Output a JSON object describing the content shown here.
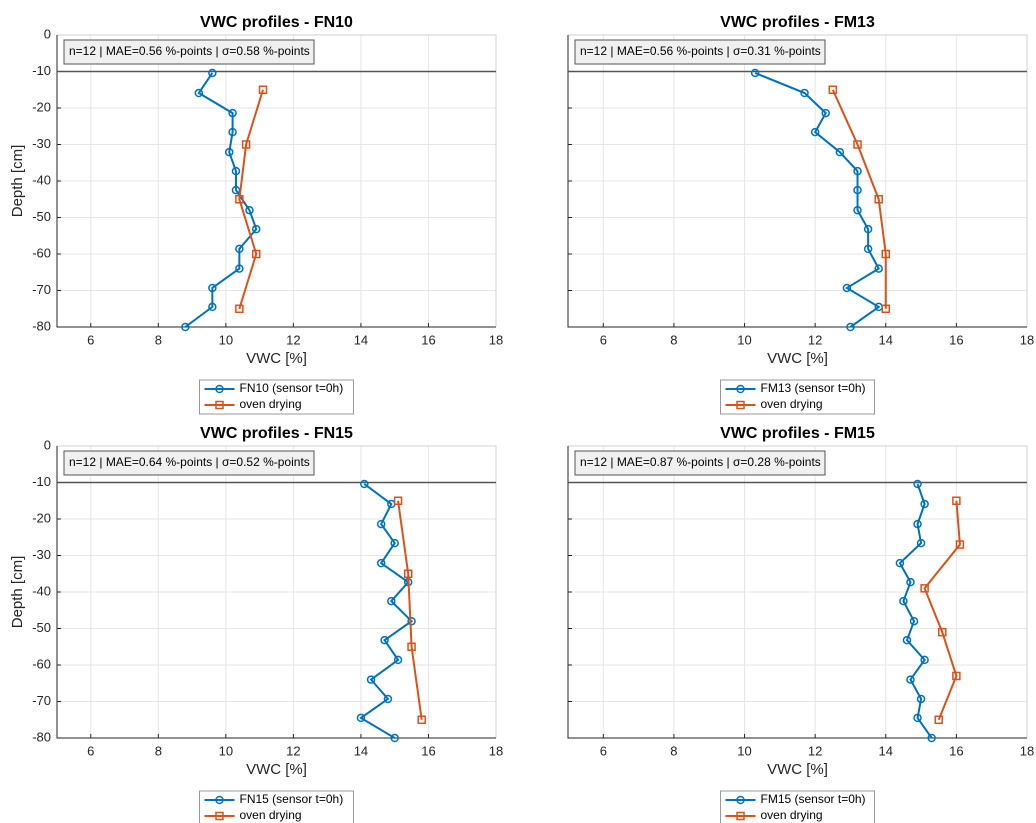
{
  "chart_data": [
    {
      "type": "line",
      "title": "VWC profiles - FN10",
      "annotation": "n=12 | MAE=0.56 %-points | σ=0.58 %-points",
      "xlabel": "VWC [%]",
      "ylabel": "Depth [cm]",
      "xlim": [
        5,
        18
      ],
      "ylim": [
        -80,
        0
      ],
      "xticks": [
        6,
        8,
        10,
        12,
        14,
        16,
        18
      ],
      "yticks": [
        0,
        -10,
        -20,
        -30,
        -40,
        -50,
        -60,
        -70,
        -80
      ],
      "ytick_labels": true,
      "grid": true,
      "hline": -10,
      "series": [
        {
          "name": "FN10 (sensor t=0h)",
          "color": "#0072bd",
          "marker": "o",
          "x": [
            9.6,
            9.2,
            10.2,
            10.2,
            10.1,
            10.3,
            10.3,
            10.7,
            10.9,
            10.4,
            10.4,
            9.6,
            9.6,
            8.8
          ],
          "values": [
            -10.4,
            -15.9,
            -21.4,
            -26.6,
            -32.1,
            -37.3,
            -42.5,
            -48,
            -53.2,
            -58.6,
            -64,
            -69.3,
            -74.5,
            -80
          ]
        },
        {
          "name": "oven drying",
          "color": "#d95319",
          "marker": "s",
          "x": [
            11.1,
            10.6,
            10.4,
            10.9,
            10.4
          ],
          "values": [
            -15,
            -30,
            -45,
            -60,
            -75
          ]
        }
      ]
    },
    {
      "type": "line",
      "title": "VWC profiles - FM13",
      "annotation": "n=12 | MAE=0.56 %-points | σ=0.31 %-points",
      "xlabel": "VWC [%]",
      "xlim": [
        5,
        18
      ],
      "ylim": [
        -80,
        0
      ],
      "xticks": [
        6,
        8,
        10,
        12,
        14,
        16,
        18
      ],
      "yticks": [
        0,
        -10,
        -20,
        -30,
        -40,
        -50,
        -60,
        -70,
        -80
      ],
      "ytick_labels": false,
      "grid": true,
      "hline": -10,
      "series": [
        {
          "name": "FM13 (sensor t=0h)",
          "color": "#0072bd",
          "marker": "o",
          "x": [
            10.3,
            11.7,
            12.3,
            12.0,
            12.7,
            13.2,
            13.2,
            13.2,
            13.5,
            13.5,
            13.8,
            12.9,
            13.8,
            13.0
          ],
          "values": [
            -10.4,
            -15.9,
            -21.4,
            -26.6,
            -32.1,
            -37.3,
            -42.5,
            -48,
            -53.2,
            -58.6,
            -64,
            -69.3,
            -74.5,
            -80
          ]
        },
        {
          "name": "oven drying",
          "color": "#d95319",
          "marker": "s",
          "x": [
            12.5,
            13.2,
            13.8,
            14.0,
            14.0
          ],
          "values": [
            -15,
            -30,
            -45,
            -60,
            -75
          ]
        }
      ]
    },
    {
      "type": "line",
      "title": "VWC profiles - FN15",
      "annotation": "n=12 | MAE=0.64 %-points | σ=0.52 %-points",
      "xlabel": "VWC [%]",
      "ylabel": "Depth [cm]",
      "xlim": [
        5,
        18
      ],
      "ylim": [
        -80,
        0
      ],
      "xticks": [
        6,
        8,
        10,
        12,
        14,
        16,
        18
      ],
      "yticks": [
        0,
        -10,
        -20,
        -30,
        -40,
        -50,
        -60,
        -70,
        -80
      ],
      "ytick_labels": true,
      "grid": true,
      "hline": -10,
      "series": [
        {
          "name": "FN15 (sensor t=0h)",
          "color": "#0072bd",
          "marker": "o",
          "x": [
            14.1,
            14.9,
            14.6,
            15.0,
            14.6,
            15.4,
            14.9,
            15.5,
            14.7,
            15.1,
            14.3,
            14.8,
            14.0,
            15.0
          ],
          "values": [
            -10.4,
            -15.9,
            -21.4,
            -26.6,
            -32.1,
            -37.3,
            -42.5,
            -48,
            -53.2,
            -58.6,
            -64,
            -69.3,
            -74.5,
            -80
          ]
        },
        {
          "name": "oven drying",
          "color": "#d95319",
          "marker": "s",
          "x": [
            15.1,
            15.4,
            15.5,
            15.8
          ],
          "values": [
            -15,
            -35,
            -55,
            -75
          ]
        }
      ]
    },
    {
      "type": "line",
      "title": "VWC profiles - FM15",
      "annotation": "n=12 | MAE=0.87 %-points | σ=0.28 %-points",
      "xlabel": "VWC [%]",
      "xlim": [
        5,
        18
      ],
      "ylim": [
        -80,
        0
      ],
      "xticks": [
        6,
        8,
        10,
        12,
        14,
        16,
        18
      ],
      "yticks": [
        0,
        -10,
        -20,
        -30,
        -40,
        -50,
        -60,
        -70,
        -80
      ],
      "ytick_labels": false,
      "grid": true,
      "hline": -10,
      "series": [
        {
          "name": "FM15 (sensor t=0h)",
          "color": "#0072bd",
          "marker": "o",
          "x": [
            14.9,
            15.1,
            14.9,
            15.0,
            14.4,
            14.7,
            14.5,
            14.8,
            14.6,
            15.1,
            14.7,
            15.0,
            14.9,
            15.3
          ],
          "values": [
            -10.4,
            -15.9,
            -21.4,
            -26.6,
            -32.1,
            -37.3,
            -42.5,
            -48,
            -53.2,
            -58.6,
            -64,
            -69.3,
            -74.5,
            -80
          ]
        },
        {
          "name": "oven drying",
          "color": "#d95319",
          "marker": "s",
          "x": [
            16.0,
            16.1,
            15.1,
            15.6,
            16.0,
            15.5
          ],
          "values": [
            -15,
            -27,
            -39,
            -51,
            -63,
            -75
          ]
        }
      ]
    }
  ]
}
